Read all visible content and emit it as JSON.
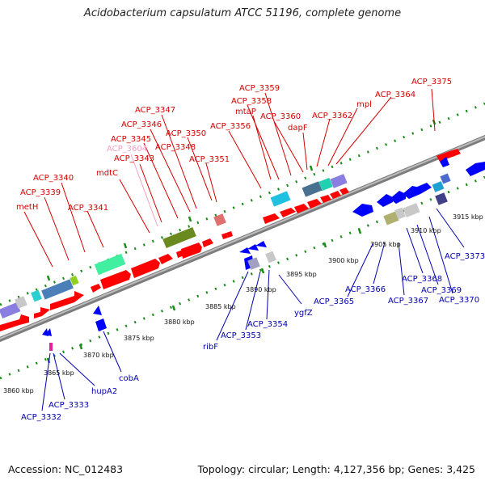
{
  "title": "Acidobacterium capsulatum ATCC 51196, complete genome",
  "footer": {
    "accession": "Accession: NC_012483",
    "topology": "Topology: circular; Length: 4,127,356 bp; Genes: 3,425"
  },
  "colors": {
    "forward_label": "#d40000",
    "reverse_label": "#0000b0",
    "forward_gene": "#ff0000",
    "reverse_gene": "#0000ff",
    "backbone": "#8c8c8c",
    "tick": "#1a8c1a"
  },
  "scale_labels": [
    "3860 kbp",
    "3865 kbp",
    "3870 kbp",
    "3875 kbp",
    "3880 kbp",
    "3885 kbp",
    "3890 kbp",
    "3895 kbp",
    "3900 kbp",
    "3905 kbp",
    "3910 kbp",
    "3915 kbp"
  ],
  "forward_labels": [
    "metH",
    "ACP_3339",
    "ACP_3340",
    "ACP_3341",
    "mdtC",
    "ACP_3343",
    "ACP_3604",
    "ACP_3345",
    "ACP_3346",
    "ACP_3347",
    "ACP_3348",
    "ACP_3350",
    "ACP_3351",
    "ACP_3356",
    "ACP_3358",
    "ACP_3359",
    "mtaP",
    "ACP_3360",
    "dapF",
    "ACP_3362",
    "mpl",
    "ACP_3364",
    "ACP_3375"
  ],
  "reverse_labels": [
    "ACP_3332",
    "ACP_3333",
    "hupA2",
    "cobA",
    "ribF",
    "ACP_3353",
    "ACP_3354",
    "ygfZ",
    "ACP_3365",
    "ACP_3366",
    "ACP_3367",
    "ACP_3368",
    "ACP_3369",
    "ACP_3370",
    "ACP_3373"
  ]
}
